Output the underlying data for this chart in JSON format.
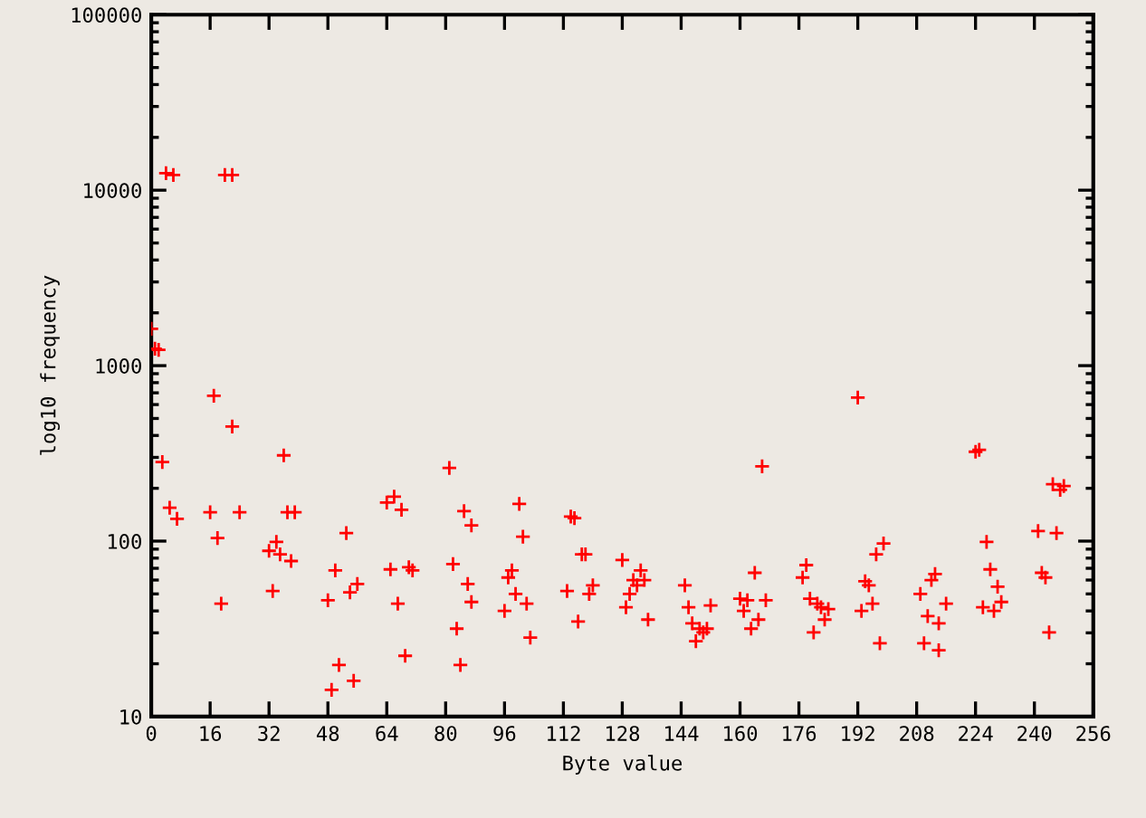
{
  "chart_data": {
    "type": "scatter",
    "xlabel": "Byte value",
    "ylabel": "log10 frequency",
    "log": "y",
    "marker": "cross",
    "grid": false,
    "xlim": [
      0,
      256
    ],
    "xticks": [
      0,
      16,
      32,
      48,
      64,
      80,
      96,
      112,
      128,
      144,
      160,
      176,
      192,
      208,
      224,
      240,
      256
    ],
    "ylim": [
      10,
      100000
    ],
    "yticks": [
      10,
      100,
      1000,
      10000,
      100000
    ],
    "series": [
      {
        "color": "#ff0000",
        "x": [
          0,
          1,
          2,
          3,
          4,
          5,
          6,
          7,
          16,
          17,
          18,
          19,
          20,
          22,
          22,
          24,
          32,
          33,
          34,
          35,
          36,
          37,
          38,
          39,
          48,
          49,
          50,
          51,
          53,
          54,
          55,
          56,
          64,
          65,
          66,
          67,
          68,
          69,
          70,
          71,
          81,
          82,
          83,
          84,
          85,
          86,
          87,
          87,
          96,
          97,
          98,
          99,
          100,
          101,
          102,
          103,
          113,
          114,
          115,
          116,
          117,
          118,
          119,
          120,
          128,
          129,
          130,
          131,
          132,
          133,
          134,
          135,
          145,
          146,
          147,
          148,
          149,
          150,
          151,
          152,
          160,
          161,
          162,
          163,
          164,
          165,
          166,
          167,
          177,
          178,
          179,
          180,
          181,
          182,
          183,
          184,
          192,
          193,
          194,
          195,
          196,
          197,
          198,
          199,
          209,
          210,
          211,
          212,
          213,
          214,
          214,
          216,
          224,
          225,
          226,
          227,
          228,
          229,
          230,
          231,
          241,
          242,
          243,
          244,
          245,
          246,
          247,
          248
        ],
        "values": [
          1620,
          1250,
          1230,
          282,
          12500,
          155,
          12200,
          134,
          146,
          673,
          104,
          44,
          12200,
          12200,
          450,
          146,
          88,
          52,
          99,
          84,
          308,
          146,
          77,
          146,
          46,
          14.2,
          68,
          19.7,
          111,
          51,
          16,
          57,
          166,
          69,
          179,
          44,
          151,
          22.2,
          71,
          68,
          261,
          74,
          31.7,
          19.7,
          148,
          57,
          123,
          45,
          40,
          62,
          68,
          50,
          163,
          106,
          44,
          28.2,
          52,
          138,
          135,
          34.8,
          84,
          84,
          50,
          56,
          78,
          42,
          50,
          60,
          56,
          68,
          60,
          35.7,
          56,
          42,
          34,
          26.9,
          31.7,
          30.2,
          31.7,
          43,
          47,
          40,
          46,
          31.7,
          66,
          35.7,
          267,
          46,
          62,
          73,
          47,
          30.2,
          44,
          42,
          35.7,
          41,
          658,
          40,
          59,
          56,
          44,
          84,
          26.2,
          97,
          50,
          26.2,
          37.4,
          60,
          65,
          34,
          23.9,
          44,
          323,
          331,
          42,
          99,
          69,
          40,
          55,
          45,
          114,
          66,
          62,
          30.2,
          211,
          111,
          196,
          206
        ]
      }
    ]
  }
}
